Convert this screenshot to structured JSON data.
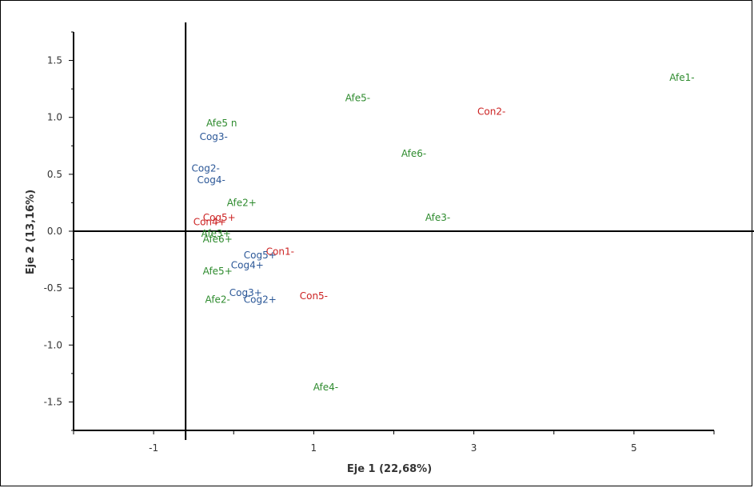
{
  "chart_data": {
    "type": "scatter",
    "title": "",
    "xlabel": "Eje 1  (22,68%)",
    "ylabel": "Eje 2  (13,16%)",
    "xlim": [
      -2,
      6
    ],
    "ylim": [
      -1.75,
      1.75
    ],
    "x_ticks": [
      {
        "value": -1,
        "label": "-1"
      },
      {
        "value": 1,
        "label": "1"
      },
      {
        "value": 3,
        "label": "3"
      },
      {
        "value": 5,
        "label": "5"
      }
    ],
    "y_ticks": [
      {
        "value": 1.5,
        "label": "1.5"
      },
      {
        "value": 1.0,
        "label": "1.0"
      },
      {
        "value": 0.5,
        "label": "0.5"
      },
      {
        "value": 0.0,
        "label": "0.0"
      },
      {
        "value": -0.5,
        "label": "-0.5"
      },
      {
        "value": -1.0,
        "label": "-1.0"
      },
      {
        "value": -1.5,
        "label": "-1.5"
      }
    ],
    "grid": false,
    "reference_lines": {
      "x": -0.6,
      "y": 0
    },
    "colors": {
      "green": "#2e8b2e",
      "blue": "#2b5797",
      "red": "#cc2222"
    },
    "points": [
      {
        "label": "Afe1-",
        "x": 5.6,
        "y": 1.35,
        "color": "green"
      },
      {
        "label": "Con2-",
        "x": 3.22,
        "y": 1.05,
        "color": "red"
      },
      {
        "label": "Afe5-",
        "x": 1.55,
        "y": 1.17,
        "color": "green"
      },
      {
        "label": "Afe6-",
        "x": 2.25,
        "y": 0.68,
        "color": "green"
      },
      {
        "label": "Afe3-",
        "x": 2.55,
        "y": 0.12,
        "color": "green"
      },
      {
        "label": "Afe5 n",
        "x": -0.15,
        "y": 0.95,
        "color": "green"
      },
      {
        "label": "Cog3-",
        "x": -0.25,
        "y": 0.83,
        "color": "blue"
      },
      {
        "label": "Cog2-",
        "x": -0.35,
        "y": 0.55,
        "color": "blue"
      },
      {
        "label": "Cog4-",
        "x": -0.28,
        "y": 0.45,
        "color": "blue"
      },
      {
        "label": "Afe2+",
        "x": 0.1,
        "y": 0.25,
        "color": "green"
      },
      {
        "label": "Cog5+",
        "x": -0.18,
        "y": 0.12,
        "color": "red"
      },
      {
        "label": "Con4+",
        "x": -0.3,
        "y": 0.08,
        "color": "red"
      },
      {
        "label": "Afe3+",
        "x": -0.22,
        "y": -0.02,
        "color": "green"
      },
      {
        "label": "Afe6+",
        "x": -0.2,
        "y": -0.07,
        "color": "green"
      },
      {
        "label": "Con1-",
        "x": 0.58,
        "y": -0.18,
        "color": "red"
      },
      {
        "label": "Cog5+",
        "x": 0.33,
        "y": -0.21,
        "color": "blue"
      },
      {
        "label": "Cog4+",
        "x": 0.17,
        "y": -0.3,
        "color": "blue"
      },
      {
        "label": "Afe5+",
        "x": -0.2,
        "y": -0.35,
        "color": "green"
      },
      {
        "label": "Con5-",
        "x": 1.0,
        "y": -0.57,
        "color": "red"
      },
      {
        "label": "Cog3+",
        "x": 0.15,
        "y": -0.54,
        "color": "blue"
      },
      {
        "label": "Afe2-",
        "x": -0.2,
        "y": -0.6,
        "color": "green"
      },
      {
        "label": "Cog2+",
        "x": 0.33,
        "y": -0.6,
        "color": "blue"
      },
      {
        "label": "Afe4-",
        "x": 1.15,
        "y": -1.37,
        "color": "green"
      }
    ]
  }
}
